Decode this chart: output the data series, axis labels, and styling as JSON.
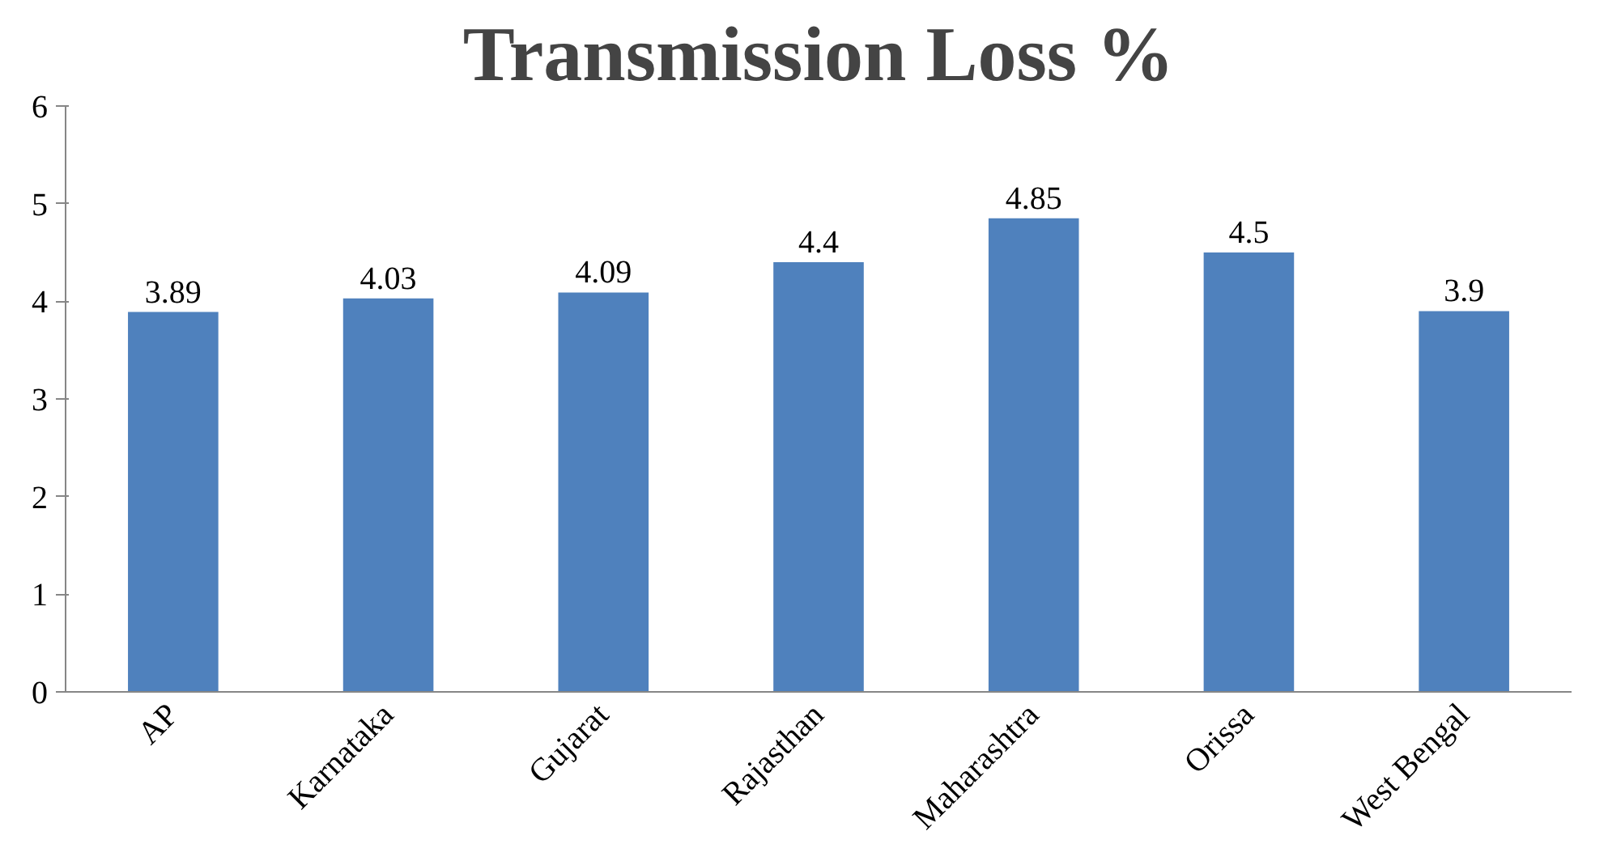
{
  "chart_data": {
    "type": "bar",
    "title": "Transmission Loss %",
    "categories": [
      "AP",
      "Karnataka",
      "Gujarat",
      "Rajasthan",
      "Maharashtra",
      "Orissa",
      "West Bengal"
    ],
    "values": [
      3.89,
      4.03,
      4.09,
      4.4,
      4.85,
      4.5,
      3.9
    ],
    "color": "#4f81bd",
    "ylim": [
      0,
      6
    ],
    "yticks": [
      0,
      1,
      2,
      3,
      4,
      5,
      6
    ],
    "grid": false,
    "data_labels": true
  }
}
